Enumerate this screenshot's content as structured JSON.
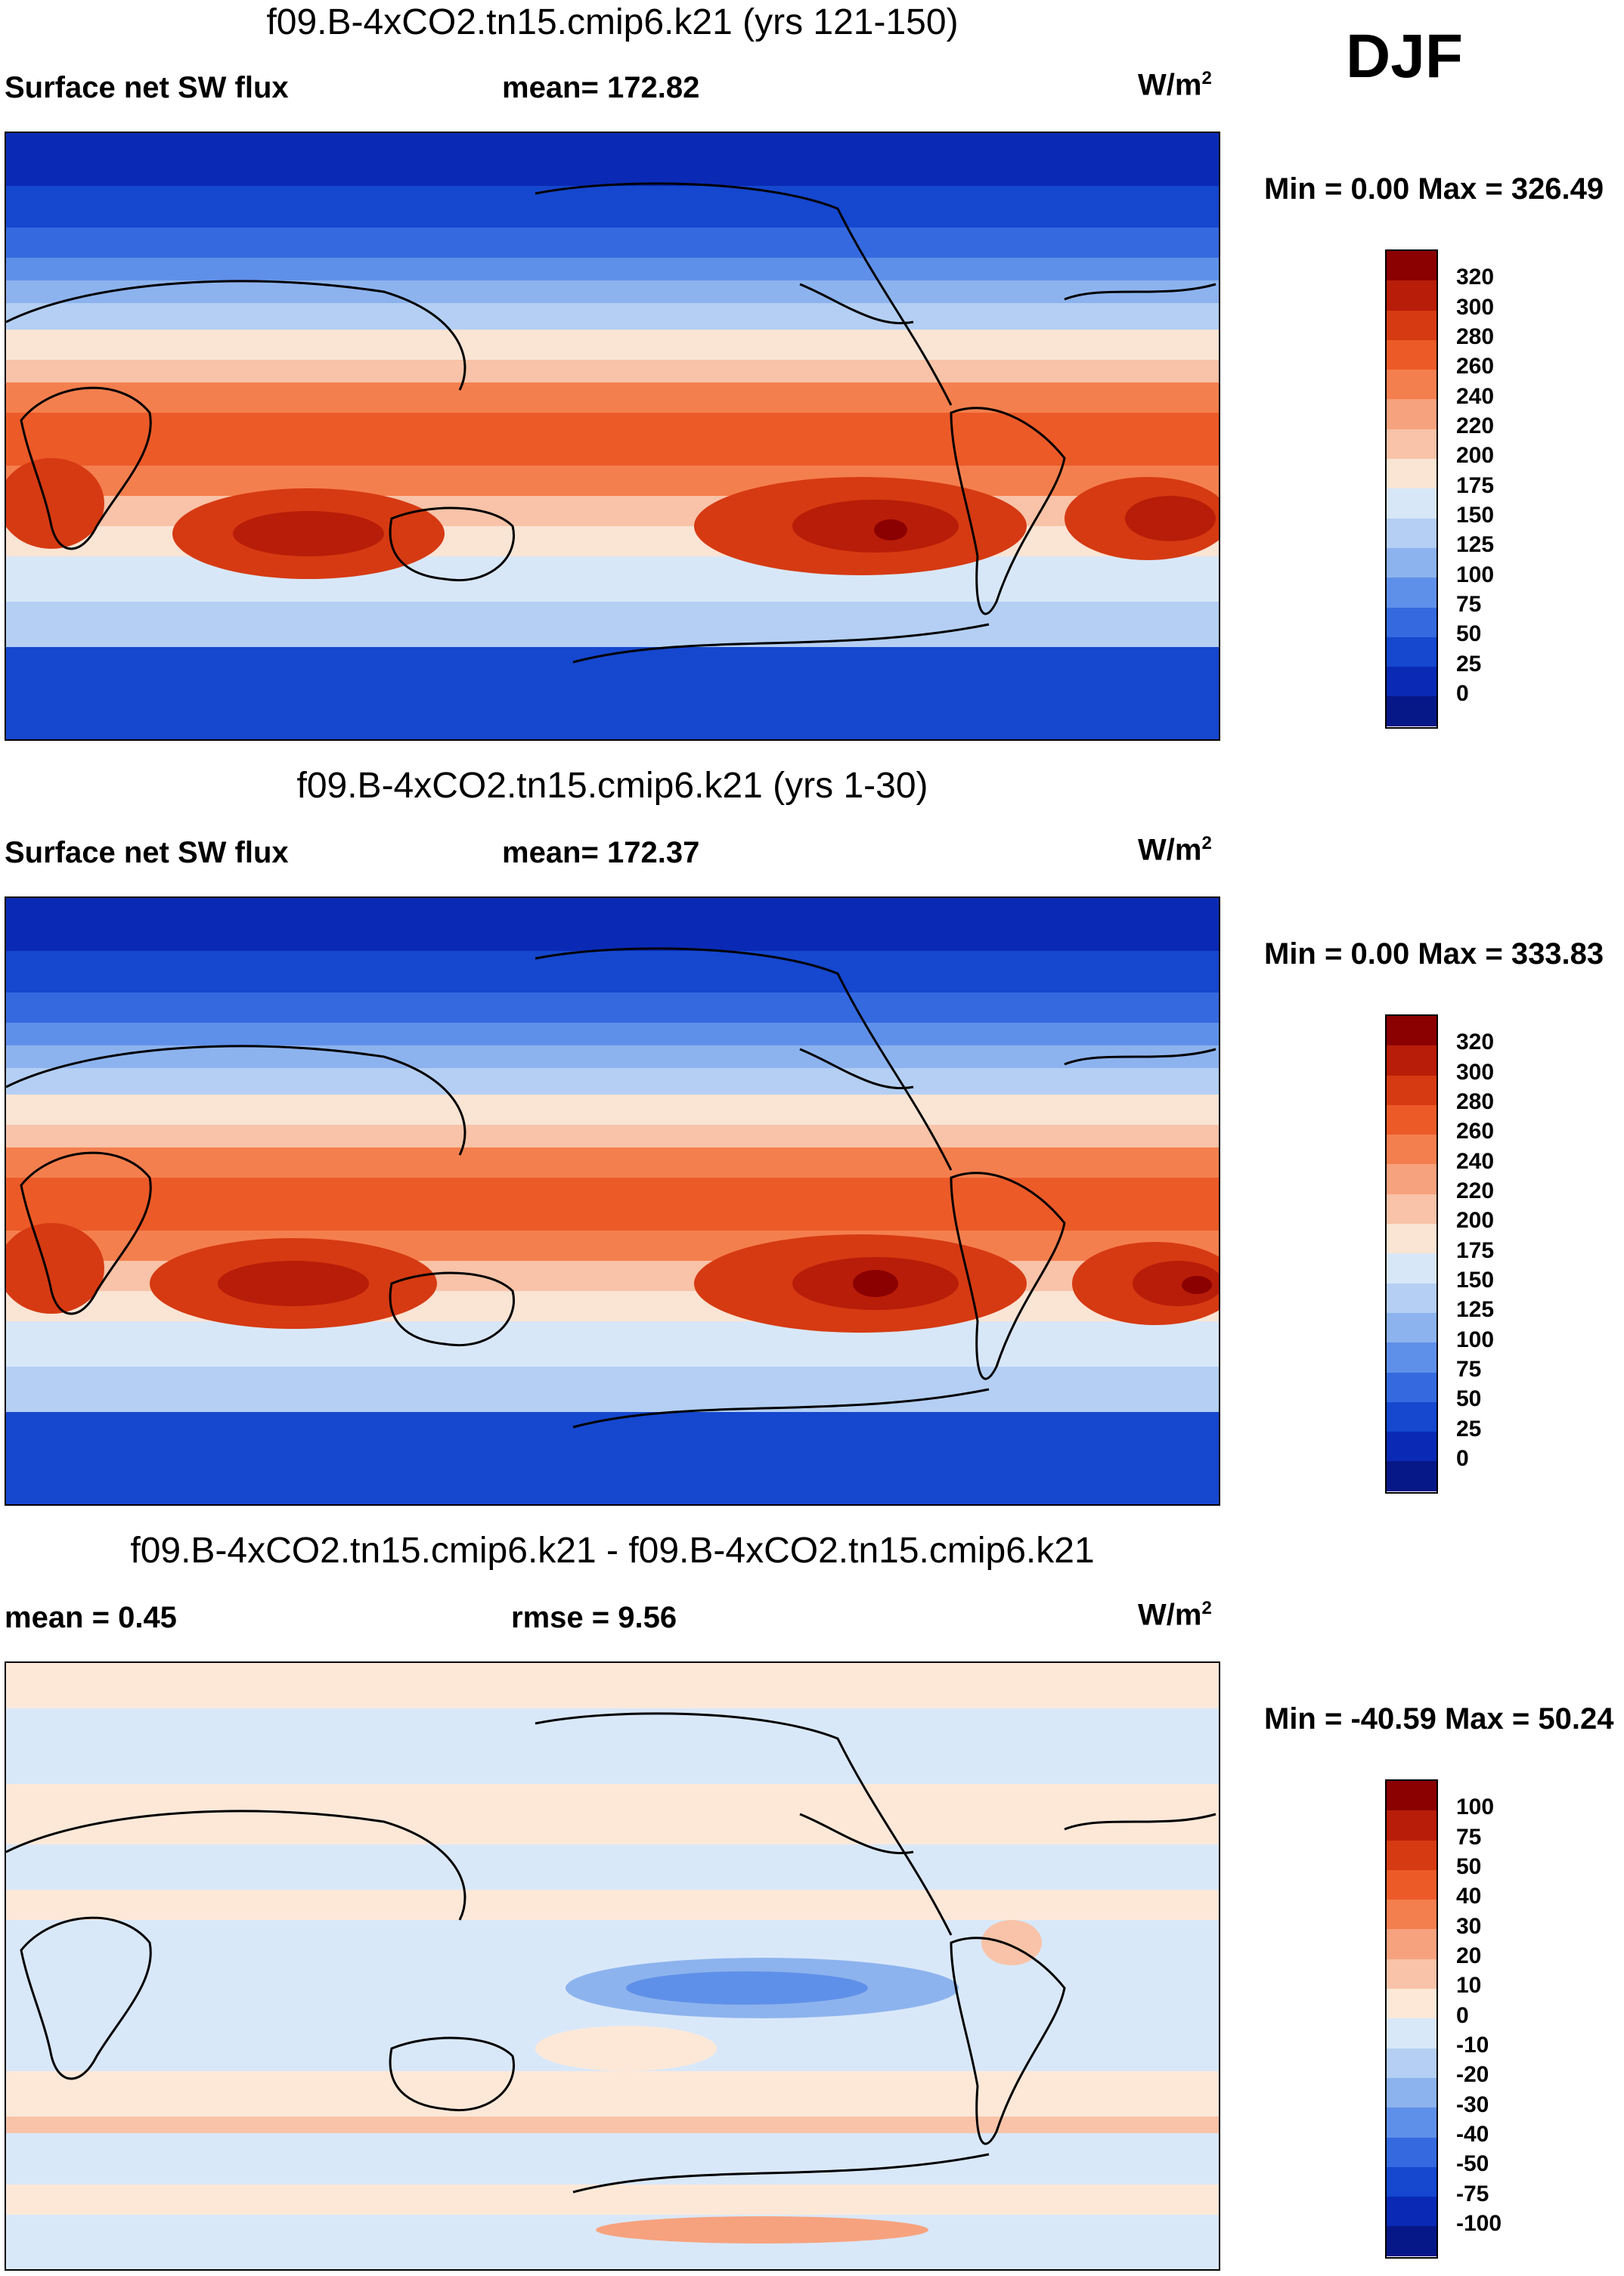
{
  "season": "DJF",
  "units": "W/m",
  "units_sup": "2",
  "panels": [
    {
      "title": "f09.B-4xCO2.tn15.cmip6.k21 (yrs 121-150)",
      "left_label": "Surface net SW flux",
      "center_label": "mean= 172.82",
      "minmax": "Min =   0.00 Max = 326.49",
      "colorbar_labels": [
        "320",
        "300",
        "280",
        "260",
        "240",
        "220",
        "200",
        "175",
        "150",
        "125",
        "100",
        "75",
        "50",
        "25",
        "0"
      ],
      "colors": [
        "#8b0000",
        "#b81d09",
        "#d63a12",
        "#ec5a28",
        "#f47f4e",
        "#f7a27e",
        "#f8c3a8",
        "#fae4d4",
        "#d8e7f8",
        "#b4cff3",
        "#8db3ee",
        "#5f90e9",
        "#3569df",
        "#1547cf",
        "#0a2ab5",
        "#061887"
      ]
    },
    {
      "title": "f09.B-4xCO2.tn15.cmip6.k21 (yrs 1-30)",
      "left_label": "Surface net SW flux",
      "center_label": "mean= 172.37",
      "minmax": "Min =   0.00 Max = 333.83",
      "colorbar_labels": [
        "320",
        "300",
        "280",
        "260",
        "240",
        "220",
        "200",
        "175",
        "150",
        "125",
        "100",
        "75",
        "50",
        "25",
        "0"
      ],
      "colors": [
        "#8b0000",
        "#b81d09",
        "#d63a12",
        "#ec5a28",
        "#f47f4e",
        "#f7a27e",
        "#f8c3a8",
        "#fae4d4",
        "#d8e7f8",
        "#b4cff3",
        "#8db3ee",
        "#5f90e9",
        "#3569df",
        "#1547cf",
        "#0a2ab5",
        "#061887"
      ]
    },
    {
      "title": "f09.B-4xCO2.tn15.cmip6.k21 - f09.B-4xCO2.tn15.cmip6.k21",
      "left_label": "mean =   0.45",
      "center_label": "rmse =   9.56",
      "minmax": "Min = -40.59 Max =  50.24",
      "colorbar_labels": [
        "100",
        "75",
        "50",
        "40",
        "30",
        "20",
        "10",
        "0",
        "-10",
        "-20",
        "-30",
        "-40",
        "-50",
        "-75",
        "-100"
      ],
      "colors": [
        "#8b0000",
        "#b81d09",
        "#d63a12",
        "#ec5a28",
        "#f47f4e",
        "#f7a27e",
        "#f8c3a8",
        "#fde8d8",
        "#d9e8f9",
        "#b4cff3",
        "#8db3ee",
        "#5f90e9",
        "#3569df",
        "#1547cf",
        "#0a2ab5",
        "#061887"
      ]
    }
  ]
}
